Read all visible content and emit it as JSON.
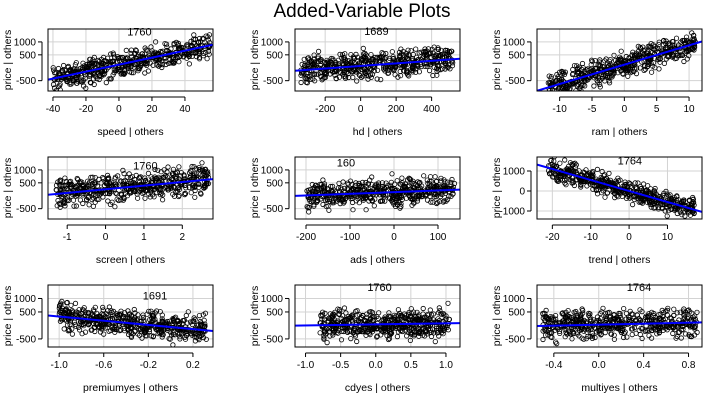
{
  "title": "Added-Variable Plots",
  "colors": {
    "points": "#000000",
    "fit_line": "#0000ff",
    "grid": "#d3d3d3"
  },
  "chart_data": [
    {
      "type": "scatter",
      "xlabel": "speed | others",
      "ylabel": "price  |  others",
      "xlim": [
        -43,
        57
      ],
      "ylim": [
        -900,
        1500
      ],
      "xticks": [
        -40,
        -20,
        0,
        20,
        40
      ],
      "yticks": [
        -500,
        500,
        1000
      ],
      "xtick_labels": [
        "-40",
        "-20",
        "0",
        "20",
        "40"
      ],
      "ytick_labels": [
        "-500",
        "500",
        "1000"
      ],
      "grid": true,
      "x_spread": [
        -40,
        55
      ],
      "resid_sd": 240,
      "fit": {
        "slope": 13.5,
        "intercept": 120
      },
      "labels": [
        {
          "text": "1760",
          "x": 5,
          "y": 1240
        }
      ]
    },
    {
      "type": "scatter",
      "xlabel": "hd | others",
      "ylabel": "price  |  others",
      "xlim": [
        -370,
        560
      ],
      "ylim": [
        -900,
        1500
      ],
      "xticks": [
        -200,
        0,
        200,
        400
      ],
      "yticks": [
        -500,
        500,
        1000
      ],
      "xtick_labels": [
        "-200",
        "0",
        "200",
        "400"
      ],
      "ytick_labels": [
        "-500",
        "500",
        "1000"
      ],
      "grid": true,
      "x_spread": [
        -340,
        520
      ],
      "resid_sd": 260,
      "fit": {
        "slope": 0.5,
        "intercept": 70
      },
      "labels": [
        {
          "text": "1689",
          "x": 20,
          "y": 1260
        }
      ]
    },
    {
      "type": "scatter",
      "xlabel": "ram | others",
      "ylabel": "price  |  others",
      "xlim": [
        -13.5,
        12
      ],
      "ylim": [
        -900,
        1500
      ],
      "xticks": [
        -10,
        -5,
        0,
        5,
        10
      ],
      "yticks": [
        -500,
        500,
        1000
      ],
      "xtick_labels": [
        "-10",
        "-5",
        "0",
        "5",
        "10"
      ],
      "ytick_labels": [
        "-500",
        "500",
        "1000"
      ],
      "grid": true,
      "x_spread": [
        -12,
        11
      ],
      "resid_sd": 240,
      "fit": {
        "slope": 75,
        "intercept": 120
      },
      "labels": []
    },
    {
      "type": "scatter",
      "xlabel": "screen | others",
      "ylabel": "price  |  others",
      "xlim": [
        -1.5,
        2.8
      ],
      "ylim": [
        -900,
        1500
      ],
      "xticks": [
        -1,
        0,
        1,
        2
      ],
      "yticks": [
        -500,
        500,
        1000
      ],
      "xtick_labels": [
        "-1",
        "0",
        "1",
        "2"
      ],
      "ytick_labels": [
        "-500",
        "500",
        "1000"
      ],
      "grid": true,
      "x_spread": [
        -1.3,
        2.7
      ],
      "resid_sd": 260,
      "fit": {
        "slope": 140,
        "intercept": 250
      },
      "labels": [
        {
          "text": "1760",
          "x": 0.72,
          "y": 1020
        }
      ]
    },
    {
      "type": "scatter",
      "xlabel": "ads | others",
      "ylabel": "price  |  others",
      "xlim": [
        -225,
        150
      ],
      "ylim": [
        -900,
        1500
      ],
      "xticks": [
        -200,
        -100,
        0,
        100
      ],
      "yticks": [
        -500,
        500,
        1000
      ],
      "xtick_labels": [
        "-200",
        "-100",
        "0",
        "100"
      ],
      "ytick_labels": [
        "-500",
        "500",
        "1000"
      ],
      "grid": true,
      "x_spread": [
        -200,
        140
      ],
      "resid_sd": 250,
      "fit": {
        "slope": 0.65,
        "intercept": 140
      },
      "labels": [
        {
          "text": "160",
          "x": -130,
          "y": 1140
        }
      ]
    },
    {
      "type": "scatter",
      "xlabel": "trend | others",
      "ylabel": "price  |  others",
      "xlim": [
        -24,
        19
      ],
      "ylim": [
        -1400,
        1700
      ],
      "xticks": [
        -20,
        -10,
        0,
        10
      ],
      "yticks": [
        -1000,
        0,
        1000
      ],
      "xtick_labels": [
        "-20",
        "-10",
        "0",
        "10"
      ],
      "ytick_labels": [
        "-1000",
        "0",
        "1000"
      ],
      "grid": true,
      "x_spread": [
        -21,
        17
      ],
      "resid_sd": 260,
      "fit": {
        "slope": -55,
        "intercept": 0
      },
      "labels": [
        {
          "text": "1764",
          "x": -3,
          "y": 1320
        }
      ]
    },
    {
      "type": "scatter",
      "xlabel": "premiumyes | others",
      "ylabel": "price  |  others",
      "xlim": [
        -1.1,
        0.38
      ],
      "ylim": [
        -800,
        1500
      ],
      "xticks": [
        -1.0,
        -0.6,
        -0.2,
        0.2
      ],
      "yticks": [
        -500,
        500,
        1000
      ],
      "xtick_labels": [
        "-1.0",
        "-0.6",
        "-0.2",
        "0.2"
      ],
      "ytick_labels": [
        "-500",
        "500",
        "1000"
      ],
      "grid": true,
      "x_spread": [
        -1.0,
        0.32
      ],
      "resid_sd": 250,
      "fit": {
        "slope": -390,
        "intercept": -60
      },
      "labels": [
        {
          "text": "1691",
          "x": -0.25,
          "y": 970
        }
      ]
    },
    {
      "type": "scatter",
      "xlabel": "cdyes | others",
      "ylabel": "price  |  others",
      "xlim": [
        -1.15,
        1.2
      ],
      "ylim": [
        -800,
        1500
      ],
      "xticks": [
        -1.0,
        -0.5,
        0.0,
        0.5,
        1.0
      ],
      "yticks": [
        -500,
        500,
        1000
      ],
      "xtick_labels": [
        "-1.0",
        "-0.5",
        "0.0",
        "0.5",
        "1.0"
      ],
      "ytick_labels": [
        "-500",
        "500",
        "1000"
      ],
      "grid": true,
      "x_spread": [
        -0.8,
        1.05
      ],
      "resid_sd": 250,
      "fit": {
        "slope": 40,
        "intercept": 40
      },
      "labels": [
        {
          "text": "1760",
          "x": -0.12,
          "y": 1270
        }
      ]
    },
    {
      "type": "scatter",
      "xlabel": "multiyes | others",
      "ylabel": "price  |  others",
      "xlim": [
        -0.55,
        0.92
      ],
      "ylim": [
        -800,
        1500
      ],
      "xticks": [
        -0.4,
        0.0,
        0.4,
        0.8
      ],
      "yticks": [
        -500,
        500,
        1000
      ],
      "xtick_labels": [
        "-0.4",
        "0.0",
        "0.4",
        "0.8"
      ],
      "ytick_labels": [
        "-500",
        "500",
        "1000"
      ],
      "grid": true,
      "x_spread": [
        -0.5,
        0.88
      ],
      "resid_sd": 250,
      "fit": {
        "slope": 90,
        "intercept": 30
      },
      "labels": [
        {
          "text": "1764",
          "x": 0.25,
          "y": 1270
        }
      ]
    }
  ]
}
